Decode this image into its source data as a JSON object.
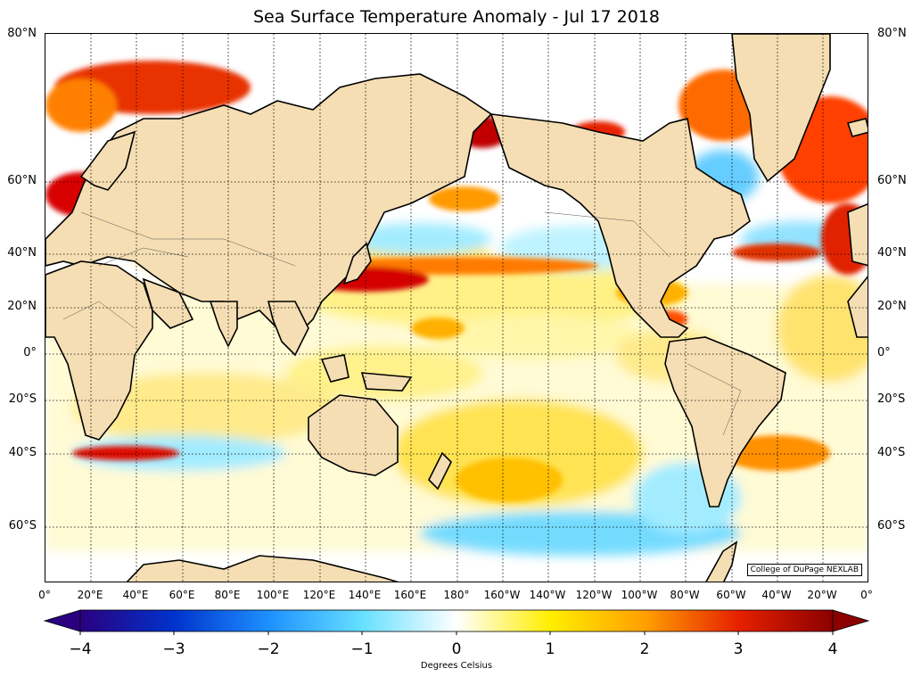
{
  "title": "Sea Surface Temperature Anomaly - Jul 17 2018",
  "credit": "College of DuPage NEXLAB",
  "lat_labels": [
    "80°N",
    "60°N",
    "40°N",
    "20°N",
    "0°",
    "20°S",
    "40°S",
    "60°S"
  ],
  "lon_labels": [
    "0°",
    "20°E",
    "40°E",
    "60°E",
    "80°E",
    "100°E",
    "120°E",
    "140°E",
    "160°E",
    "180°",
    "160°W",
    "140°W",
    "120°W",
    "100°W",
    "80°W",
    "60°W",
    "40°W",
    "20°W",
    "0°"
  ],
  "colorbar": {
    "ticks": [
      "−4",
      "−3",
      "−2",
      "−1",
      "0",
      "1",
      "2",
      "3",
      "4"
    ],
    "label": "Degrees Celsius",
    "range": [
      -4,
      4
    ],
    "colors": [
      "#2a0080",
      "#0033cc",
      "#1e90ff",
      "#66e0ff",
      "#ffffff",
      "#ffee00",
      "#ffa000",
      "#e62000",
      "#8b0000"
    ]
  },
  "colors": {
    "land": "#f5deb3",
    "coast": "#000000",
    "grid": "#000000"
  }
}
